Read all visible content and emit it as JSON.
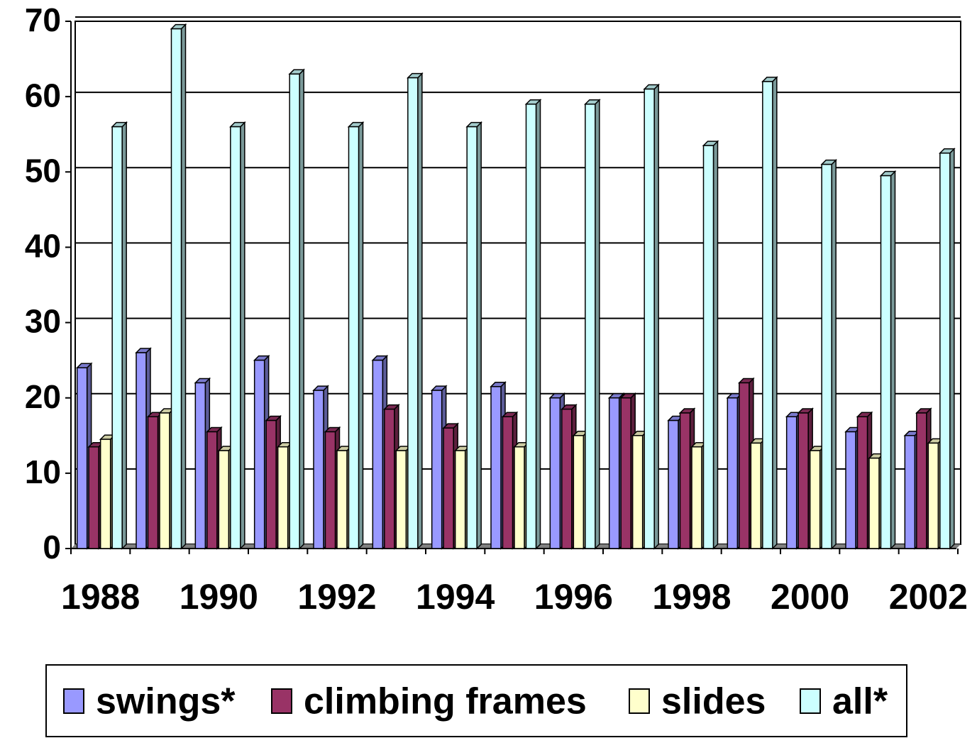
{
  "chart_data": {
    "type": "bar",
    "categories": [
      "1988",
      null,
      "1990",
      null,
      "1992",
      null,
      "1994",
      null,
      "1996",
      null,
      "1998",
      null,
      "2000",
      null,
      "2002"
    ],
    "series": [
      {
        "name": "swings*",
        "color": "#9999ff",
        "values": [
          24,
          26,
          22,
          25,
          21,
          25,
          21,
          21.5,
          20,
          20,
          17,
          20,
          17.5,
          15.5,
          15
        ]
      },
      {
        "name": "climbing frames",
        "color": "#993366",
        "values": [
          13.5,
          17.5,
          15.5,
          17,
          15.5,
          18.5,
          16,
          17.5,
          18.5,
          20,
          18,
          22,
          18,
          17.5,
          18
        ]
      },
      {
        "name": "slides",
        "color": "#ffffcc",
        "values": [
          14.5,
          18,
          13,
          13.5,
          13,
          13,
          13,
          13.5,
          15,
          15,
          13.5,
          14,
          13,
          12,
          14
        ]
      },
      {
        "name": "all*",
        "color": "#ccffff",
        "values": [
          56,
          69,
          56,
          63,
          56,
          62.5,
          56,
          59,
          59,
          61,
          53.5,
          62,
          51,
          49.5,
          52.5
        ]
      }
    ],
    "ylim": [
      0,
      70
    ],
    "yticks": [
      0,
      10,
      20,
      30,
      40,
      50,
      60,
      70
    ],
    "grid": true,
    "legend": "bottom"
  }
}
